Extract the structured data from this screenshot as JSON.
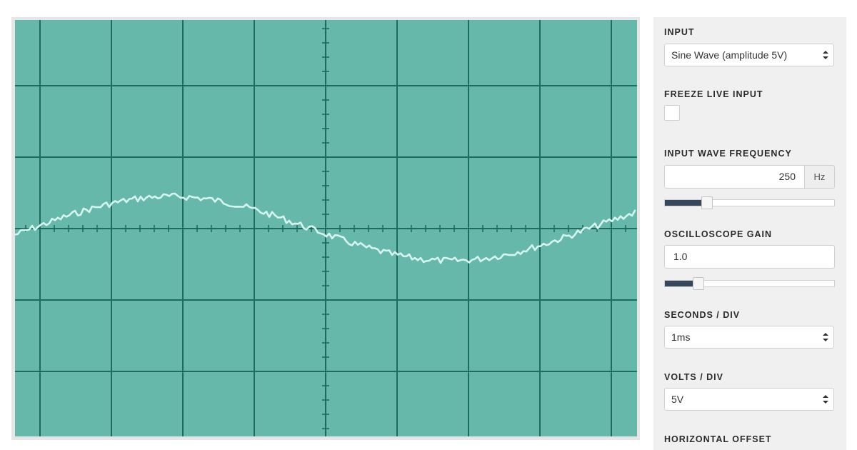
{
  "scope": {
    "divisions_x": 8.7,
    "divisions_y": 5.83,
    "colors": {
      "screen": "#66b8aa",
      "grid": "#1f6b5e",
      "trace": "#d6f5ef",
      "frame": "#e6e6e6"
    }
  },
  "controls": {
    "input": {
      "label": "INPUT",
      "value": "Sine Wave (amplitude 5V)"
    },
    "freeze": {
      "label": "FREEZE LIVE INPUT",
      "checked": false
    },
    "frequency": {
      "label": "INPUT WAVE FREQUENCY",
      "value": "250",
      "unit": "Hz",
      "slider_fraction": 0.25
    },
    "gain": {
      "label": "OSCILLOSCOPE GAIN",
      "value": "1.0",
      "slider_fraction": 0.2
    },
    "seconds_per_div": {
      "label": "SECONDS / DIV",
      "value": "1ms"
    },
    "volts_per_div": {
      "label": "VOLTS / DIV",
      "value": "5V"
    },
    "horizontal_offset": {
      "label": "HORIZONTAL OFFSET"
    }
  }
}
